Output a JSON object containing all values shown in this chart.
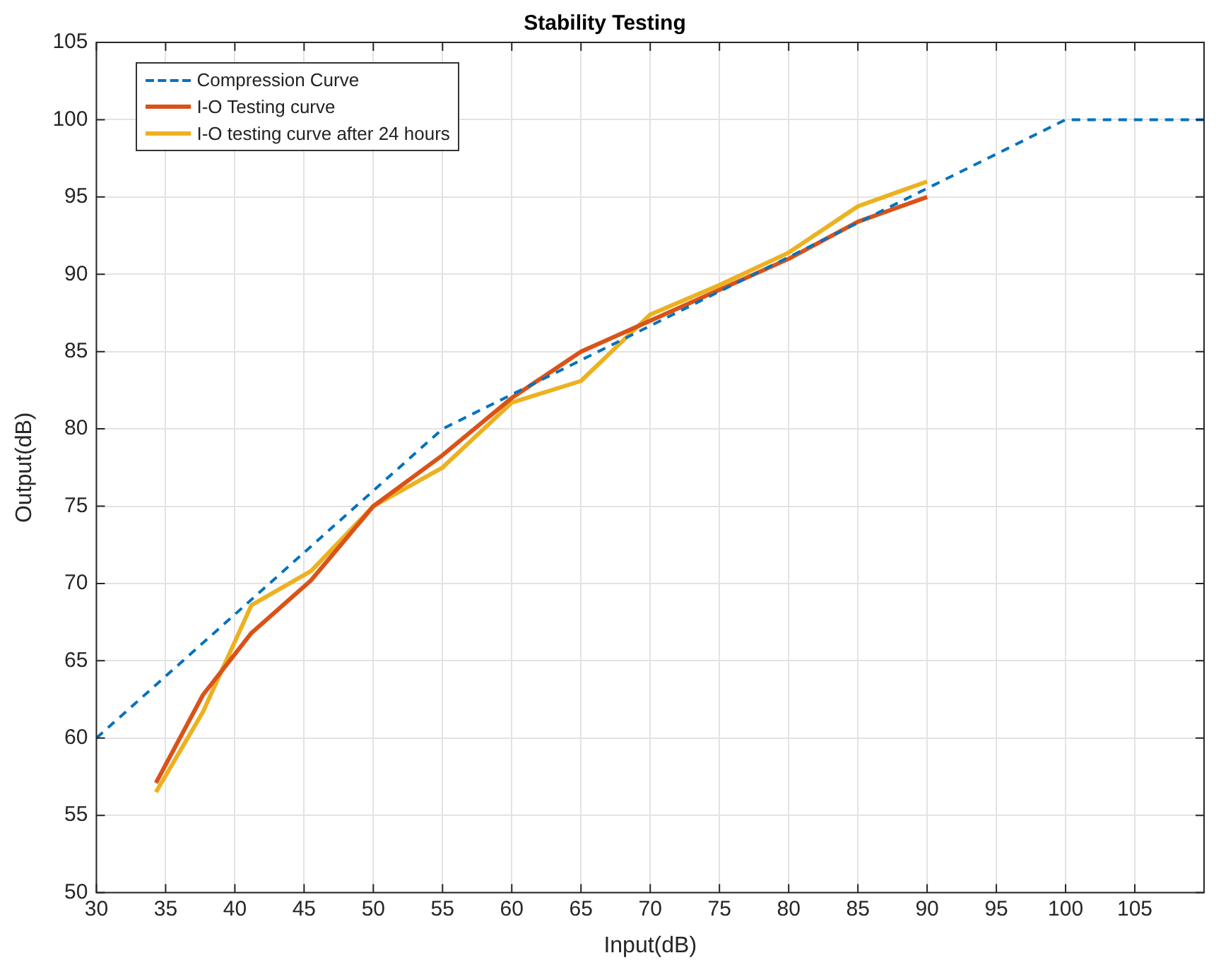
{
  "chart_data": {
    "type": "line",
    "title": "Stability Testing",
    "xlabel": "Input(dB)",
    "ylabel": "Output(dB)",
    "xlim": [
      30,
      110
    ],
    "xticks": [
      30,
      35,
      40,
      45,
      50,
      55,
      60,
      65,
      70,
      75,
      80,
      85,
      90,
      95,
      100,
      105
    ],
    "ylim": [
      50,
      105
    ],
    "yticks": [
      50,
      55,
      60,
      65,
      70,
      75,
      80,
      85,
      90,
      95,
      100,
      105
    ],
    "grid": true,
    "legend": "top left",
    "line_style": "solid",
    "series": [
      {
        "name": "Compression Curve",
        "color": "#0072bd",
        "line_style": "dashed",
        "x": [
          30,
          55,
          100,
          110
        ],
        "values": [
          60,
          80,
          100,
          100
        ]
      },
      {
        "name": "I-O Testing curve",
        "color": "#d95319",
        "x": [
          34.3,
          37.7,
          41.2,
          45.5,
          50,
          55,
          60,
          65,
          70,
          75,
          80,
          85,
          90
        ],
        "values": [
          57.1,
          62.8,
          66.8,
          70.2,
          75,
          78.3,
          82,
          85,
          87,
          89,
          91,
          93.4,
          95
        ]
      },
      {
        "name": "I-O testing curve after 24 hours",
        "color": "#edb120",
        "x": [
          34.3,
          37.7,
          41.2,
          45.5,
          50,
          55,
          60,
          65,
          70,
          75,
          80,
          85,
          90
        ],
        "values": [
          56.5,
          61.7,
          68.6,
          70.8,
          75,
          77.5,
          81.7,
          83.1,
          87.4,
          89.3,
          91.4,
          94.4,
          96
        ]
      }
    ]
  }
}
